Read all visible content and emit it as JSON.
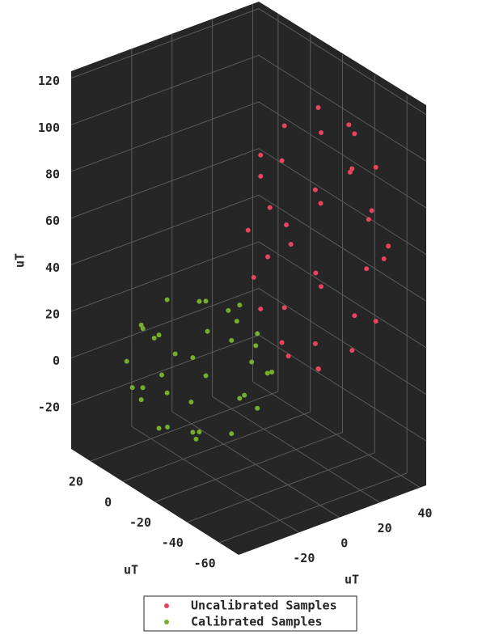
{
  "chart_data": {
    "type": "scatter3d",
    "xlabel": "uT",
    "ylabel": "uT",
    "zlabel": "uT",
    "xlim": [
      -50,
      43
    ],
    "ylim": [
      -72,
      32
    ],
    "zlim": [
      -39,
      123
    ],
    "xticks": [
      -20,
      0,
      20,
      40
    ],
    "yticks": [
      -60,
      -40,
      -20,
      0,
      20
    ],
    "zticks": [
      -20,
      0,
      20,
      40,
      60,
      80,
      100,
      120
    ],
    "grid": true,
    "legend": "bottom",
    "series": [
      {
        "name": "Uncalibrated Samples",
        "color": "#e8435f",
        "x": [
          40,
          -10,
          15,
          15,
          15,
          15,
          33,
          33,
          -3,
          -3,
          33,
          -3,
          33,
          -3,
          15,
          15,
          15,
          15,
          30,
          0,
          30,
          0,
          30,
          0,
          30,
          0,
          38,
          8,
          23,
          -8,
          23,
          8,
          38,
          5,
          20,
          -5
        ],
        "y": [
          -40,
          -40,
          -10,
          -70,
          -40,
          -40,
          -19,
          -61,
          -19,
          -61,
          -40,
          -40,
          -40,
          -40,
          -19,
          -61,
          -19,
          -61,
          -23,
          -23,
          -57,
          -57,
          -23,
          -23,
          -57,
          -57,
          -31,
          -13,
          -49,
          -49,
          -13,
          -49,
          -52,
          -34,
          -67,
          -25
        ],
        "z": [
          62,
          62,
          62,
          62,
          118,
          6,
          62,
          62,
          62,
          62,
          101,
          101,
          23,
          23,
          101,
          101,
          23,
          23,
          95,
          95,
          95,
          95,
          29,
          29,
          29,
          29,
          79,
          79,
          112,
          79,
          45,
          12,
          51,
          12,
          84,
          45
        ]
      },
      {
        "name": "Calibrated Samples",
        "color": "#77ac30",
        "x": [
          8,
          -48,
          -20,
          -20,
          -20,
          -20,
          0,
          0,
          -40,
          -40,
          0,
          -40,
          0,
          -40,
          -20,
          -20,
          -20,
          -20,
          -4,
          -36,
          -4,
          -36,
          -4,
          -36,
          -4,
          -36,
          5,
          -28,
          -12,
          -45,
          -12,
          -28,
          5,
          -31,
          -14,
          -42
        ],
        "y": [
          -10,
          -10,
          18,
          -38,
          -10,
          -10,
          10,
          -30,
          10,
          -30,
          -10,
          -10,
          -10,
          -10,
          10,
          -30,
          10,
          -30,
          6,
          6,
          -26,
          -26,
          6,
          6,
          -26,
          -26,
          -2,
          15,
          -18,
          -18,
          15,
          -18,
          -21,
          -4,
          -35,
          4
        ],
        "z": [
          5,
          5,
          5,
          5,
          33,
          -23,
          5,
          5,
          5,
          5,
          25,
          25,
          -15,
          -15,
          25,
          25,
          -15,
          -15,
          21,
          21,
          21,
          21,
          -11,
          -11,
          -11,
          -11,
          13,
          13,
          30,
          13,
          -3,
          -20,
          -1,
          -20,
          16,
          -3
        ]
      }
    ]
  }
}
